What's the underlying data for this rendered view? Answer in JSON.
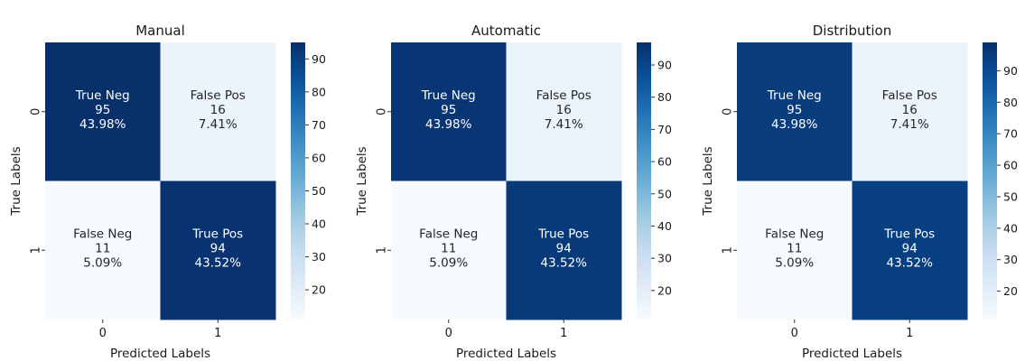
{
  "chart_data": [
    {
      "type": "heatmap",
      "title": "Manual",
      "xlabel": "Predicted Labels",
      "ylabel": "True Labels",
      "x_categories": [
        "0",
        "1"
      ],
      "y_categories": [
        "0",
        "1"
      ],
      "values": [
        [
          95,
          16
        ],
        [
          11,
          94
        ]
      ],
      "cell_labels": [
        [
          "True Neg",
          "False Pos"
        ],
        [
          "False Neg",
          "True Pos"
        ]
      ],
      "counts": [
        [
          "95",
          "16"
        ],
        [
          "11",
          "94"
        ]
      ],
      "percents": [
        [
          "43.98%",
          "7.41%"
        ],
        [
          "5.09%",
          "43.52%"
        ]
      ],
      "colorbar": {
        "range": [
          11,
          95
        ],
        "ticks": [
          "20",
          "30",
          "40",
          "50",
          "60",
          "70",
          "80",
          "90"
        ]
      },
      "colormap": "Blues",
      "grid": false
    },
    {
      "type": "heatmap",
      "title": "Automatic",
      "xlabel": "Predicted Labels",
      "ylabel": "True Labels",
      "x_categories": [
        "0",
        "1"
      ],
      "y_categories": [
        "0",
        "1"
      ],
      "values": [
        [
          95,
          16
        ],
        [
          11,
          94
        ]
      ],
      "cell_labels": [
        [
          "True Neg",
          "False Pos"
        ],
        [
          "False Neg",
          "True Pos"
        ]
      ],
      "counts": [
        [
          "95",
          "16"
        ],
        [
          "11",
          "94"
        ]
      ],
      "percents": [
        [
          "43.98%",
          "7.41%"
        ],
        [
          "5.09%",
          "43.52%"
        ]
      ],
      "colorbar": {
        "range": [
          11,
          97
        ],
        "ticks": [
          "20",
          "30",
          "40",
          "50",
          "60",
          "70",
          "80",
          "90"
        ]
      },
      "colormap": "Blues",
      "grid": false
    },
    {
      "type": "heatmap",
      "title": "Distribution",
      "xlabel": "Predicted Labels",
      "ylabel": "True Labels",
      "x_categories": [
        "0",
        "1"
      ],
      "y_categories": [
        "0",
        "1"
      ],
      "values": [
        [
          95,
          16
        ],
        [
          11,
          94
        ]
      ],
      "cell_labels": [
        [
          "True Neg",
          "False Pos"
        ],
        [
          "False Neg",
          "True Pos"
        ]
      ],
      "counts": [
        [
          "95",
          "16"
        ],
        [
          "11",
          "94"
        ]
      ],
      "percents": [
        [
          "43.98%",
          "7.41%"
        ],
        [
          "5.09%",
          "43.52%"
        ]
      ],
      "colorbar": {
        "range": [
          11,
          99
        ],
        "ticks": [
          "20",
          "30",
          "40",
          "50",
          "60",
          "70",
          "80",
          "90"
        ]
      },
      "colormap": "Blues",
      "grid": false
    }
  ]
}
